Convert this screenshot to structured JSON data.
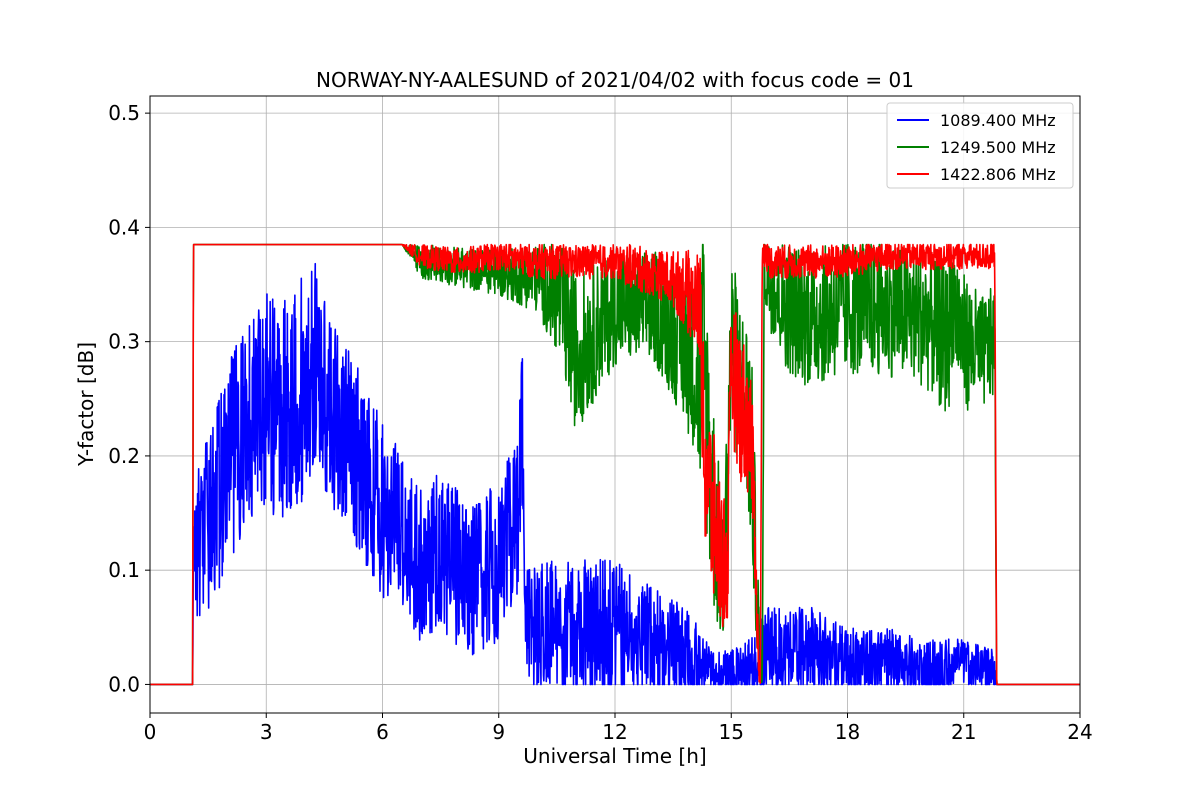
{
  "chart_data": {
    "type": "line",
    "title": "NORWAY-NY-AALESUND of 2021/04/02 with focus code = 01",
    "xlabel": "Universal Time [h]",
    "ylabel": "Y-factor [dB]",
    "xlim": [
      0,
      24
    ],
    "ylim": [
      -0.025,
      0.515
    ],
    "xticks": [
      0,
      3,
      6,
      9,
      12,
      15,
      18,
      21,
      24
    ],
    "xtick_labels": [
      "0",
      "3",
      "6",
      "9",
      "12",
      "15",
      "18",
      "21",
      "24"
    ],
    "yticks": [
      0.0,
      0.1,
      0.2,
      0.3,
      0.4,
      0.5
    ],
    "ytick_labels": [
      "0.0",
      "0.1",
      "0.2",
      "0.3",
      "0.4",
      "0.5"
    ],
    "grid": true,
    "legend_position": "top-right",
    "series": [
      {
        "name": "1089.400 MHz",
        "color": "#0000ff",
        "trace_style": "noisy",
        "x": [
          0,
          1.1,
          1.12,
          1.5,
          2.0,
          2.5,
          3.0,
          3.5,
          4.0,
          4.3,
          4.6,
          5.0,
          5.5,
          6.0,
          6.5,
          7.0,
          7.5,
          8.0,
          8.5,
          9.0,
          9.5,
          9.6,
          9.7,
          10.0,
          11.0,
          12.0,
          13.0,
          14.0,
          14.5,
          15.0,
          15.5,
          16.0,
          17.0,
          18.0,
          19.0,
          20.0,
          21.0,
          21.8,
          21.85,
          24
        ],
        "y": [
          0.0,
          0.0,
          0.12,
          0.14,
          0.19,
          0.23,
          0.25,
          0.24,
          0.26,
          0.28,
          0.24,
          0.22,
          0.19,
          0.15,
          0.14,
          0.1,
          0.12,
          0.1,
          0.09,
          0.11,
          0.15,
          0.25,
          0.05,
          0.05,
          0.05,
          0.05,
          0.04,
          0.02,
          0.01,
          0.01,
          0.01,
          0.03,
          0.03,
          0.02,
          0.02,
          0.01,
          0.02,
          0.01,
          0.0,
          0.0
        ],
        "spread": [
          0,
          0,
          0.06,
          0.08,
          0.09,
          0.09,
          0.1,
          0.1,
          0.1,
          0.09,
          0.08,
          0.08,
          0.08,
          0.08,
          0.07,
          0.07,
          0.07,
          0.07,
          0.07,
          0.07,
          0.07,
          0.07,
          0.05,
          0.06,
          0.06,
          0.06,
          0.05,
          0.04,
          0.02,
          0.02,
          0.03,
          0.04,
          0.04,
          0.03,
          0.03,
          0.03,
          0.02,
          0.02,
          0,
          0
        ]
      },
      {
        "name": "1249.500 MHz",
        "color": "#008000",
        "trace_style": "noisy",
        "x": [
          0,
          1.1,
          1.12,
          6.5,
          7.0,
          9.0,
          10.0,
          10.5,
          11.0,
          11.5,
          12.0,
          13.0,
          13.5,
          14.0,
          14.2,
          14.25,
          14.5,
          14.8,
          15.0,
          15.3,
          15.5,
          15.7,
          15.8,
          15.85,
          16.0,
          16.5,
          17.0,
          18.0,
          19.0,
          20.0,
          20.6,
          20.7,
          21.0,
          21.5,
          21.8,
          21.85,
          24
        ],
        "y": [
          0.0,
          0.0,
          0.385,
          0.385,
          0.37,
          0.36,
          0.355,
          0.34,
          0.29,
          0.31,
          0.33,
          0.33,
          0.31,
          0.28,
          0.25,
          0.3,
          0.17,
          0.08,
          0.3,
          0.25,
          0.22,
          0.05,
          0.0,
          0.36,
          0.35,
          0.33,
          0.32,
          0.33,
          0.33,
          0.32,
          0.3,
          0.34,
          0.3,
          0.29,
          0.3,
          0.0,
          0.0
        ],
        "spread": [
          0,
          0,
          0,
          0,
          0.015,
          0.02,
          0.03,
          0.05,
          0.07,
          0.06,
          0.05,
          0.05,
          0.06,
          0.07,
          0.08,
          0.12,
          0.1,
          0.06,
          0.08,
          0.08,
          0.1,
          0.04,
          0,
          0.03,
          0.04,
          0.06,
          0.06,
          0.06,
          0.06,
          0.06,
          0.07,
          0.06,
          0.06,
          0.05,
          0.05,
          0,
          0
        ]
      },
      {
        "name": "1422.806 MHz",
        "color": "#ff0000",
        "trace_style": "noisy",
        "x": [
          0,
          1.1,
          1.12,
          6.5,
          7.0,
          8.0,
          9.0,
          10.0,
          11.0,
          12.0,
          12.5,
          13.0,
          13.5,
          14.0,
          14.2,
          14.3,
          14.5,
          14.7,
          14.9,
          15.0,
          15.2,
          15.5,
          15.6,
          15.7,
          15.75,
          15.8,
          16.0,
          16.5,
          17.0,
          18.0,
          19.0,
          20.0,
          21.0,
          21.8,
          21.85,
          24
        ],
        "y": [
          0.0,
          0.0,
          0.385,
          0.385,
          0.375,
          0.37,
          0.375,
          0.37,
          0.37,
          0.37,
          0.365,
          0.36,
          0.355,
          0.34,
          0.33,
          0.2,
          0.15,
          0.12,
          0.1,
          0.28,
          0.25,
          0.22,
          0.15,
          0.02,
          0.0,
          0.38,
          0.37,
          0.37,
          0.37,
          0.37,
          0.375,
          0.375,
          0.375,
          0.375,
          0.0,
          0.0
        ],
        "spread": [
          0,
          0,
          0,
          0,
          0.01,
          0.012,
          0.012,
          0.015,
          0.015,
          0.015,
          0.02,
          0.02,
          0.025,
          0.04,
          0.05,
          0.08,
          0.08,
          0.07,
          0.06,
          0.06,
          0.07,
          0.06,
          0.05,
          0.02,
          0,
          0.01,
          0.015,
          0.015,
          0.015,
          0.015,
          0.012,
          0.012,
          0.012,
          0.012,
          0,
          0
        ]
      }
    ]
  }
}
